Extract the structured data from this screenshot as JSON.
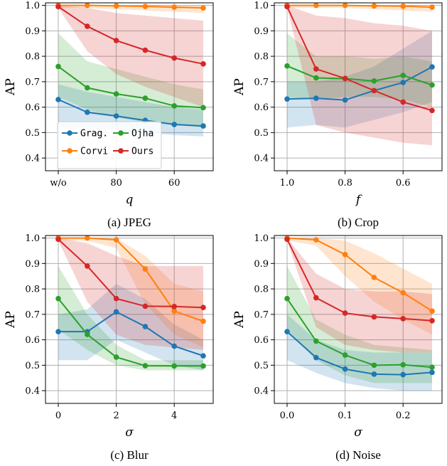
{
  "legend": {
    "entries": [
      {
        "name": "Grag.",
        "color": "#1f77b4"
      },
      {
        "name": "Corvi",
        "color": "#ff7f0e"
      },
      {
        "name": "Ojha",
        "color": "#2ca02c"
      },
      {
        "name": "Ours",
        "color": "#d62728"
      }
    ],
    "placement": "lower-left (panel a)"
  },
  "chart_data": [
    {
      "type": "line",
      "caption": "(a) JPEG",
      "xlabel": "q",
      "ylabel": "AP",
      "x": [
        0,
        1,
        2,
        3,
        4,
        5
      ],
      "x_ticks": [
        {
          "x": 0,
          "label": "w/o"
        },
        {
          "x": 2,
          "label": "80"
        },
        {
          "x": 4,
          "label": "60"
        }
      ],
      "ylim": [
        0.35,
        1.01
      ],
      "y_ticks": [
        "0.4",
        "0.5",
        "0.6",
        "0.7",
        "0.8",
        "0.9",
        "1.0"
      ],
      "grid": true,
      "series": [
        {
          "name": "Grag.",
          "values": [
            0.63,
            0.58,
            0.565,
            0.548,
            0.532,
            0.526
          ],
          "band_low": [
            0.52,
            0.515,
            0.51,
            0.5,
            0.49,
            0.485
          ],
          "band_high": [
            0.69,
            0.66,
            0.64,
            0.62,
            0.6,
            0.59
          ]
        },
        {
          "name": "Corvi",
          "values": [
            1.0,
            1.0,
            0.998,
            0.996,
            0.993,
            0.99
          ],
          "band_low": [
            0.99,
            0.99,
            0.985,
            0.98,
            0.975,
            0.97
          ],
          "band_high": [
            1.0,
            1.0,
            1.0,
            1.0,
            1.0,
            1.0
          ]
        },
        {
          "name": "Ojha",
          "values": [
            0.76,
            0.676,
            0.652,
            0.635,
            0.605,
            0.598
          ],
          "band_low": [
            0.64,
            0.59,
            0.56,
            0.54,
            0.53,
            0.52
          ],
          "band_high": [
            0.89,
            0.78,
            0.75,
            0.72,
            0.69,
            0.67
          ]
        },
        {
          "name": "Ours",
          "values": [
            0.995,
            0.918,
            0.862,
            0.824,
            0.793,
            0.77
          ],
          "band_low": [
            0.99,
            0.82,
            0.73,
            0.68,
            0.64,
            0.6
          ],
          "band_high": [
            1.0,
            0.99,
            0.97,
            0.96,
            0.95,
            0.94
          ]
        }
      ]
    },
    {
      "type": "line",
      "caption": "(b) Crop",
      "xlabel": "f",
      "ylabel": "AP",
      "x": [
        1.0,
        0.9,
        0.8,
        0.7,
        0.6,
        0.5
      ],
      "x_ticks": [
        {
          "x": 1.0,
          "label": "1.0"
        },
        {
          "x": 0.8,
          "label": "0.8"
        },
        {
          "x": 0.6,
          "label": "0.6"
        }
      ],
      "ylim": [
        0.35,
        1.01
      ],
      "y_ticks": [
        "0.4",
        "0.5",
        "0.6",
        "0.7",
        "0.8",
        "0.9",
        "1.0"
      ],
      "grid": true,
      "series": [
        {
          "name": "Grag.",
          "values": [
            0.632,
            0.635,
            0.628,
            0.665,
            0.697,
            0.758
          ],
          "band_low": [
            0.52,
            0.53,
            0.52,
            0.55,
            0.58,
            0.62
          ],
          "band_high": [
            0.7,
            0.7,
            0.72,
            0.76,
            0.83,
            0.9
          ]
        },
        {
          "name": "Corvi",
          "values": [
            1.0,
            1.0,
            1.0,
            0.998,
            0.997,
            0.993
          ],
          "band_low": [
            0.99,
            0.99,
            0.99,
            0.985,
            0.98,
            0.975
          ],
          "band_high": [
            1.0,
            1.0,
            1.0,
            1.0,
            1.0,
            1.0
          ]
        },
        {
          "name": "Ojha",
          "values": [
            0.762,
            0.715,
            0.712,
            0.703,
            0.725,
            0.687
          ],
          "band_low": [
            0.64,
            0.63,
            0.64,
            0.64,
            0.63,
            0.6
          ],
          "band_high": [
            0.89,
            0.8,
            0.8,
            0.79,
            0.8,
            0.78
          ]
        },
        {
          "name": "Ours",
          "values": [
            0.995,
            0.75,
            0.713,
            0.665,
            0.62,
            0.587
          ],
          "band_low": [
            0.99,
            0.53,
            0.5,
            0.48,
            0.46,
            0.45
          ],
          "band_high": [
            1.0,
            0.96,
            0.95,
            0.93,
            0.92,
            0.9
          ]
        }
      ]
    },
    {
      "type": "line",
      "caption": "(c) Blur",
      "xlabel": "σ",
      "ylabel": "AP",
      "x": [
        0,
        1,
        2,
        3,
        4,
        5
      ],
      "x_ticks": [
        {
          "x": 0,
          "label": "0"
        },
        {
          "x": 2,
          "label": "2"
        },
        {
          "x": 4,
          "label": "4"
        }
      ],
      "ylim": [
        0.35,
        1.01
      ],
      "y_ticks": [
        "0.4",
        "0.5",
        "0.6",
        "0.7",
        "0.8",
        "0.9",
        "1.0"
      ],
      "grid": true,
      "series": [
        {
          "name": "Grag.",
          "values": [
            0.632,
            0.632,
            0.71,
            0.652,
            0.575,
            0.537
          ],
          "band_low": [
            0.52,
            0.52,
            0.6,
            0.55,
            0.5,
            0.48
          ],
          "band_high": [
            0.7,
            0.72,
            0.82,
            0.76,
            0.66,
            0.6
          ]
        },
        {
          "name": "Corvi",
          "values": [
            1.0,
            1.0,
            0.993,
            0.878,
            0.713,
            0.673
          ],
          "band_low": [
            0.99,
            0.99,
            0.96,
            0.74,
            0.62,
            0.57
          ],
          "band_high": [
            1.0,
            1.0,
            1.0,
            0.93,
            0.82,
            0.79
          ]
        },
        {
          "name": "Ojha",
          "values": [
            0.762,
            0.621,
            0.532,
            0.498,
            0.497,
            0.497
          ],
          "band_low": [
            0.64,
            0.56,
            0.5,
            0.48,
            0.48,
            0.48
          ],
          "band_high": [
            0.89,
            0.7,
            0.58,
            0.52,
            0.52,
            0.52
          ]
        },
        {
          "name": "Ours",
          "values": [
            0.995,
            0.89,
            0.762,
            0.732,
            0.731,
            0.727
          ],
          "band_low": [
            0.99,
            0.75,
            0.62,
            0.58,
            0.57,
            0.56
          ],
          "band_high": [
            1.0,
            0.98,
            0.93,
            0.89,
            0.89,
            0.89
          ]
        }
      ]
    },
    {
      "type": "line",
      "caption": "(d) Noise",
      "xlabel": "σ",
      "ylabel": "AP",
      "x": [
        0.0,
        0.05,
        0.1,
        0.15,
        0.2,
        0.25
      ],
      "x_ticks": [
        {
          "x": 0.0,
          "label": "0.0"
        },
        {
          "x": 0.1,
          "label": "0.1"
        },
        {
          "x": 0.2,
          "label": "0.2"
        }
      ],
      "ylim": [
        0.35,
        1.01
      ],
      "y_ticks": [
        "0.4",
        "0.5",
        "0.6",
        "0.7",
        "0.8",
        "0.9",
        "1.0"
      ],
      "grid": true,
      "series": [
        {
          "name": "Grag.",
          "values": [
            0.632,
            0.53,
            0.485,
            0.465,
            0.463,
            0.472
          ],
          "band_low": [
            0.52,
            0.47,
            0.43,
            0.41,
            0.4,
            0.4
          ],
          "band_high": [
            0.7,
            0.6,
            0.56,
            0.55,
            0.55,
            0.55
          ]
        },
        {
          "name": "Corvi",
          "values": [
            1.0,
            0.993,
            0.935,
            0.845,
            0.785,
            0.713
          ],
          "band_low": [
            0.99,
            0.97,
            0.85,
            0.75,
            0.68,
            0.62
          ],
          "band_high": [
            1.0,
            1.0,
            0.99,
            0.94,
            0.88,
            0.82
          ]
        },
        {
          "name": "Ojha",
          "values": [
            0.762,
            0.595,
            0.54,
            0.5,
            0.502,
            0.492
          ],
          "band_low": [
            0.64,
            0.52,
            0.46,
            0.43,
            0.43,
            0.43
          ],
          "band_high": [
            0.89,
            0.68,
            0.62,
            0.58,
            0.57,
            0.56
          ]
        },
        {
          "name": "Ours",
          "values": [
            0.995,
            0.765,
            0.705,
            0.69,
            0.683,
            0.675
          ],
          "band_low": [
            0.99,
            0.65,
            0.58,
            0.56,
            0.55,
            0.55
          ],
          "band_high": [
            1.0,
            0.86,
            0.8,
            0.79,
            0.79,
            0.78
          ]
        }
      ]
    }
  ]
}
